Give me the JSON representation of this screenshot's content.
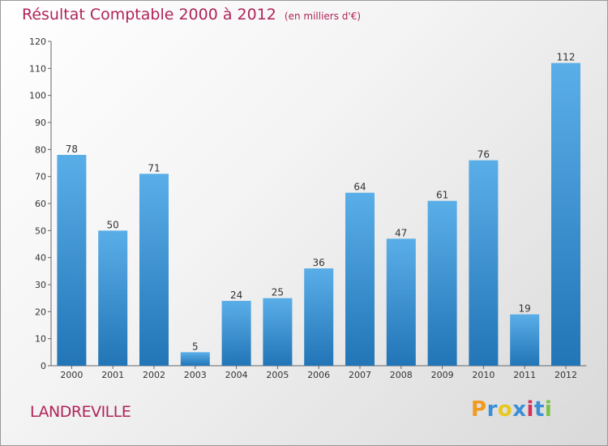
{
  "chart_data": {
    "type": "bar",
    "title": "Résultat Comptable 2000 à 2012",
    "subtitle": "(en milliers d'€)",
    "categories": [
      "2000",
      "2001",
      "2002",
      "2003",
      "2004",
      "2005",
      "2006",
      "2007",
      "2008",
      "2009",
      "2010",
      "2011",
      "2012"
    ],
    "values": [
      78,
      50,
      71,
      5,
      24,
      25,
      36,
      64,
      47,
      61,
      76,
      19,
      112
    ],
    "yticks": [
      0,
      10,
      20,
      30,
      40,
      50,
      60,
      70,
      80,
      90,
      100,
      110,
      120
    ],
    "ylim": [
      0,
      120
    ],
    "xlabel": "",
    "ylabel": "",
    "grid": false,
    "bar_color_top": "#5aaee8",
    "bar_color_bottom": "#2275b6"
  },
  "location": "LANDREVILLE",
  "brand": {
    "name": "Proxiti",
    "letters": [
      "P",
      "r",
      "o",
      "x",
      "i",
      "t",
      "i"
    ],
    "colors": [
      "#f09a1e",
      "#3a8fd6",
      "#e8c81e",
      "#3a8fd6",
      "#d6305a",
      "#3a8fd6",
      "#7cc242"
    ]
  }
}
